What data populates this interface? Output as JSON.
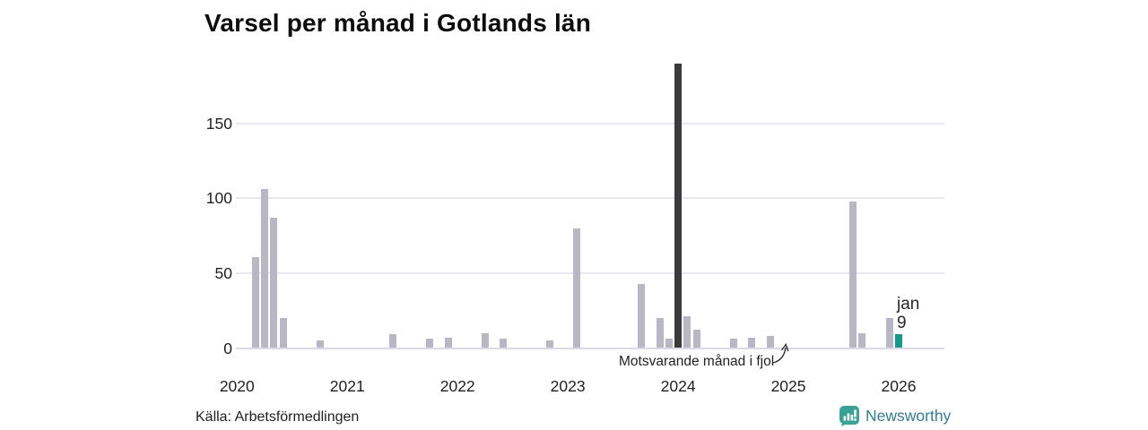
{
  "title": "Varsel per månad i Gotlands län",
  "source": "Källa: Arbetsförmedlingen",
  "annotation": {
    "text": "Motsvarande månad i fjol",
    "points_to_month": "2025-01"
  },
  "current_label": {
    "line1": "jan",
    "line2": "9"
  },
  "branding": {
    "name": "Newsworthy",
    "icon": "newsworthy-logo-icon",
    "icon_color": "#3aa295",
    "text_color": "#337d8d"
  },
  "colors": {
    "bar_default": "#b9b7c4",
    "bar_dark": "#3b3b3b",
    "bar_current": "#14998a",
    "gridline": "#e9e8f0",
    "baseline": "#dcdbe3",
    "axis_text": "#1f1f1f",
    "annotation_text": "#222222"
  },
  "chart_data": {
    "type": "bar",
    "title": "Varsel per månad i Gotlands län",
    "xlabel": "",
    "ylabel": "",
    "y_ticks": [
      0,
      50,
      100,
      150
    ],
    "ylim": [
      0,
      195
    ],
    "x_tick_labels": [
      "2020",
      "2021",
      "2022",
      "2023",
      "2024",
      "2025",
      "2026"
    ],
    "x_range_months": [
      "2020-01",
      "2026-01"
    ],
    "grid": true,
    "legend": false,
    "bars": [
      {
        "month": "2020-03",
        "value": 61
      },
      {
        "month": "2020-04",
        "value": 106
      },
      {
        "month": "2020-05",
        "value": 87
      },
      {
        "month": "2020-06",
        "value": 20
      },
      {
        "month": "2020-10",
        "value": 5
      },
      {
        "month": "2021-06",
        "value": 9
      },
      {
        "month": "2021-10",
        "value": 6
      },
      {
        "month": "2021-12",
        "value": 7
      },
      {
        "month": "2022-04",
        "value": 10
      },
      {
        "month": "2022-06",
        "value": 6
      },
      {
        "month": "2022-11",
        "value": 5
      },
      {
        "month": "2023-02",
        "value": 80
      },
      {
        "month": "2023-09",
        "value": 43
      },
      {
        "month": "2023-11",
        "value": 20
      },
      {
        "month": "2023-12",
        "value": 6
      },
      {
        "month": "2024-01",
        "value": 190
      },
      {
        "month": "2024-02",
        "value": 21
      },
      {
        "month": "2024-03",
        "value": 12
      },
      {
        "month": "2024-07",
        "value": 6
      },
      {
        "month": "2024-09",
        "value": 7
      },
      {
        "month": "2024-11",
        "value": 8
      },
      {
        "month": "2025-08",
        "value": 98
      },
      {
        "month": "2025-09",
        "value": 10
      },
      {
        "month": "2025-12",
        "value": 20
      },
      {
        "month": "2026-01",
        "value": 9
      }
    ],
    "highlight_dark": {
      "month": "2024-01"
    },
    "highlight_current": {
      "month": "2026-01",
      "label": "jan 9"
    }
  }
}
